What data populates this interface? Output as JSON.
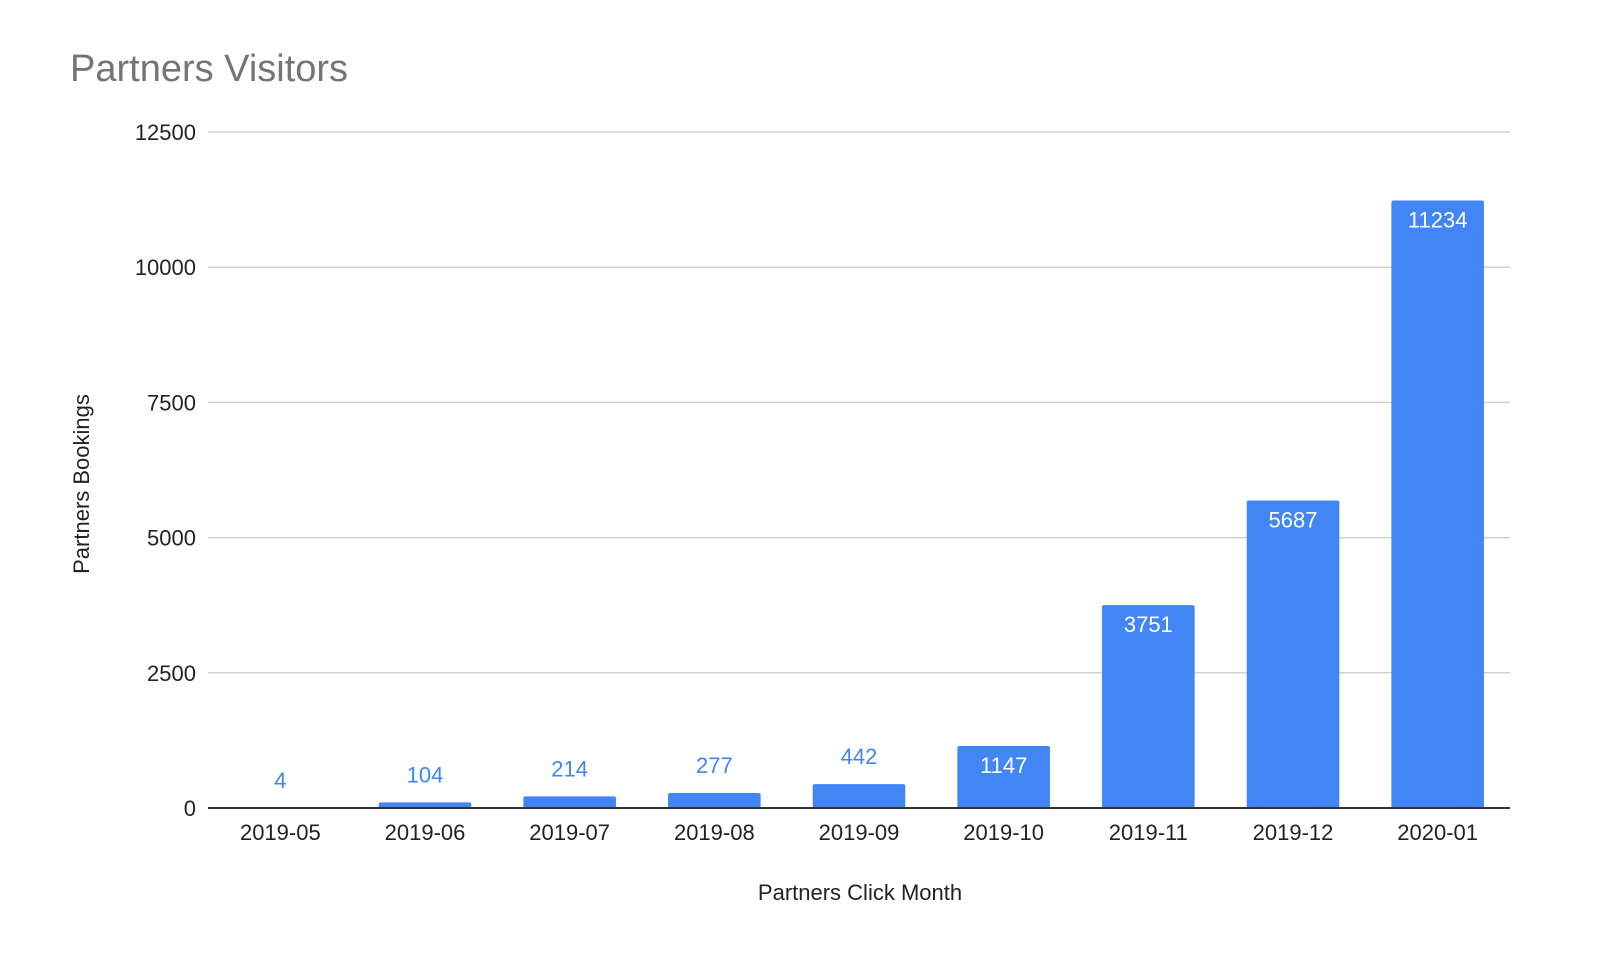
{
  "chart_data": {
    "type": "bar",
    "title": "Partners Visitors",
    "xlabel": "Partners Click Month",
    "ylabel": "Partners Bookings",
    "categories": [
      "2019-05",
      "2019-06",
      "2019-07",
      "2019-08",
      "2019-09",
      "2019-10",
      "2019-11",
      "2019-12",
      "2020-01"
    ],
    "values": [
      4,
      104,
      214,
      277,
      442,
      1147,
      3751,
      5687,
      11234
    ],
    "ylim": [
      0,
      12500
    ],
    "yticks": [
      0,
      2500,
      5000,
      7500,
      10000,
      12500
    ],
    "grid": true,
    "legend": "none",
    "colors": {
      "bar": "#4285f4",
      "label_inside": "#ffffff",
      "label_outside": "#4285f4"
    }
  }
}
